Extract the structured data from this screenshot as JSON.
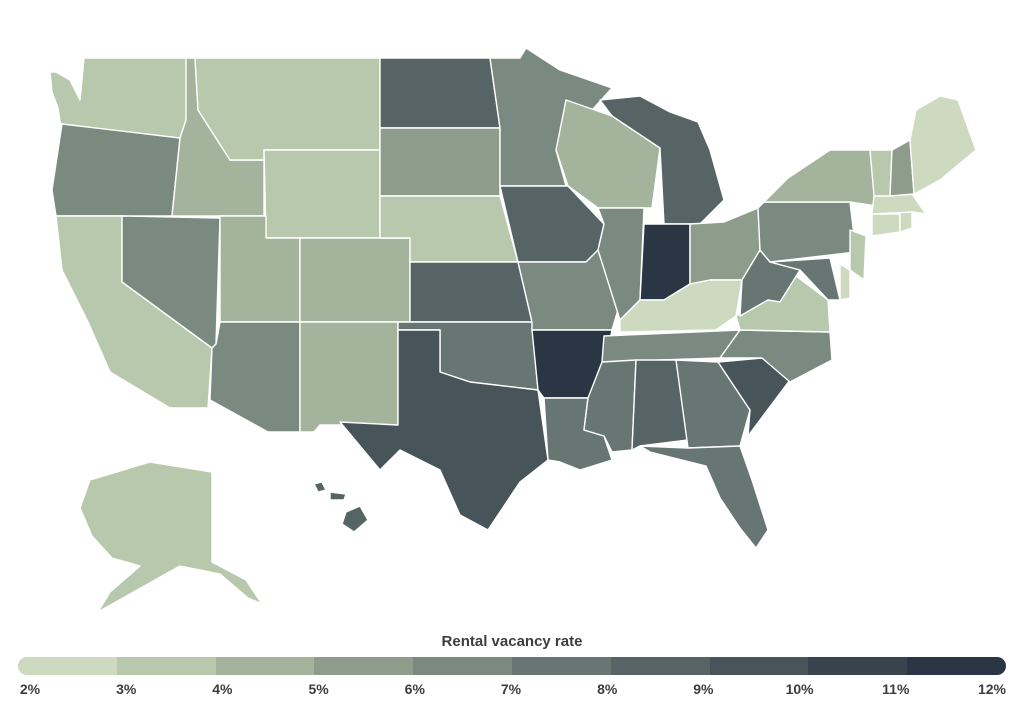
{
  "legend": {
    "title": "Rental vacancy rate",
    "ticks": [
      "2%",
      "3%",
      "4%",
      "5%",
      "6%",
      "7%",
      "8%",
      "9%",
      "10%",
      "11%",
      "12%"
    ],
    "colors": [
      "#e1ecd1",
      "#cddabf",
      "#b8c8ad",
      "#a3b39c",
      "#8e9c8c",
      "#7b8a80",
      "#677672",
      "#566466",
      "#475459",
      "#38444d",
      "#2b3644"
    ]
  },
  "states": {
    "WA": 4.2,
    "OR": 7.0,
    "CA": 4.2,
    "NV": 7.3,
    "ID": 4.8,
    "MT": 4.2,
    "WY": 4.2,
    "UT": 4.9,
    "CO": 4.7,
    "AZ": 7.4,
    "NM": 4.5,
    "ND": 8.6,
    "SD": 5.8,
    "NE": 4.2,
    "KS": 8.5,
    "OK": 8.3,
    "TX": 9.8,
    "MN": 6.5,
    "IA": 8.6,
    "MO": 7.2,
    "AR": 12.0,
    "LA": 8.0,
    "WI": 5.0,
    "IL": 7.2,
    "MI": 8.5,
    "IN": 11.5,
    "OH": 5.5,
    "KY": 3.2,
    "TN": 7.3,
    "MS": 7.5,
    "AL": 9.3,
    "GA": 7.5,
    "FL": 8.4,
    "SC": 10.0,
    "NC": 7.4,
    "VA": 4.3,
    "WV": 8.3,
    "PA": 7.0,
    "NY": 4.6,
    "ME": 2.5,
    "VT": 3.5,
    "NH": 5.5,
    "MA": 2.6,
    "RI": 3.0,
    "CT": 3.2,
    "NJ": 3.6,
    "DE": 3.3,
    "MD": 8.3,
    "AK": 4.2,
    "HI": 8.8
  }
}
